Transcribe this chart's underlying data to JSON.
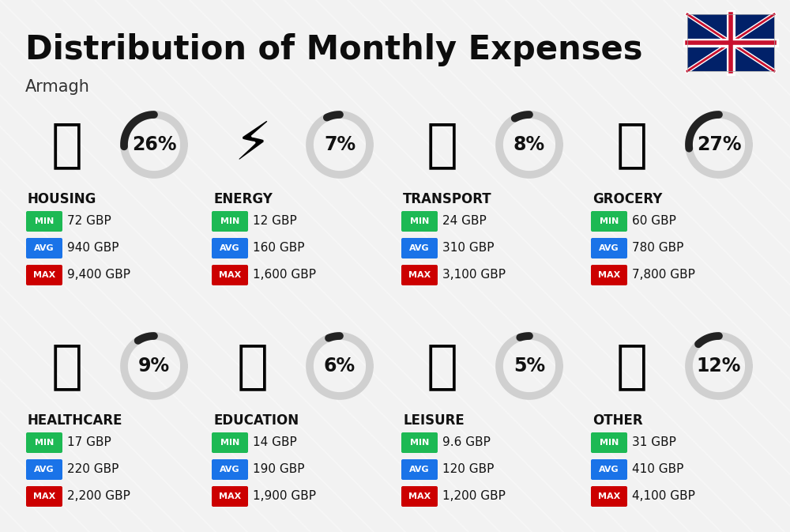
{
  "title": "Distribution of Monthly Expenses",
  "subtitle": "Armagh",
  "bg_color": "#f2f2f2",
  "categories": [
    {
      "name": "HOUSING",
      "pct": 26,
      "min": "72 GBP",
      "avg": "940 GBP",
      "max": "9,400 GBP",
      "row": 0,
      "col": 0
    },
    {
      "name": "ENERGY",
      "pct": 7,
      "min": "12 GBP",
      "avg": "160 GBP",
      "max": "1,600 GBP",
      "row": 0,
      "col": 1
    },
    {
      "name": "TRANSPORT",
      "pct": 8,
      "min": "24 GBP",
      "avg": "310 GBP",
      "max": "3,100 GBP",
      "row": 0,
      "col": 2
    },
    {
      "name": "GROCERY",
      "pct": 27,
      "min": "60 GBP",
      "avg": "780 GBP",
      "max": "7,800 GBP",
      "row": 0,
      "col": 3
    },
    {
      "name": "HEALTHCARE",
      "pct": 9,
      "min": "17 GBP",
      "avg": "220 GBP",
      "max": "2,200 GBP",
      "row": 1,
      "col": 0
    },
    {
      "name": "EDUCATION",
      "pct": 6,
      "min": "14 GBP",
      "avg": "190 GBP",
      "max": "1,900 GBP",
      "row": 1,
      "col": 1
    },
    {
      "name": "LEISURE",
      "pct": 5,
      "min": "9.6 GBP",
      "avg": "120 GBP",
      "max": "1,200 GBP",
      "row": 1,
      "col": 2
    },
    {
      "name": "OTHER",
      "pct": 12,
      "min": "31 GBP",
      "avg": "410 GBP",
      "max": "4,100 GBP",
      "row": 1,
      "col": 3
    }
  ],
  "min_color": "#1db954",
  "avg_color": "#1a73e8",
  "max_color": "#cc0000",
  "arc_dark": "#222222",
  "arc_light": "#d0d0d0",
  "title_fontsize": 30,
  "subtitle_fontsize": 15,
  "cat_fontsize": 12,
  "pct_fontsize": 17,
  "val_fontsize": 11,
  "badge_fontsize": 8
}
